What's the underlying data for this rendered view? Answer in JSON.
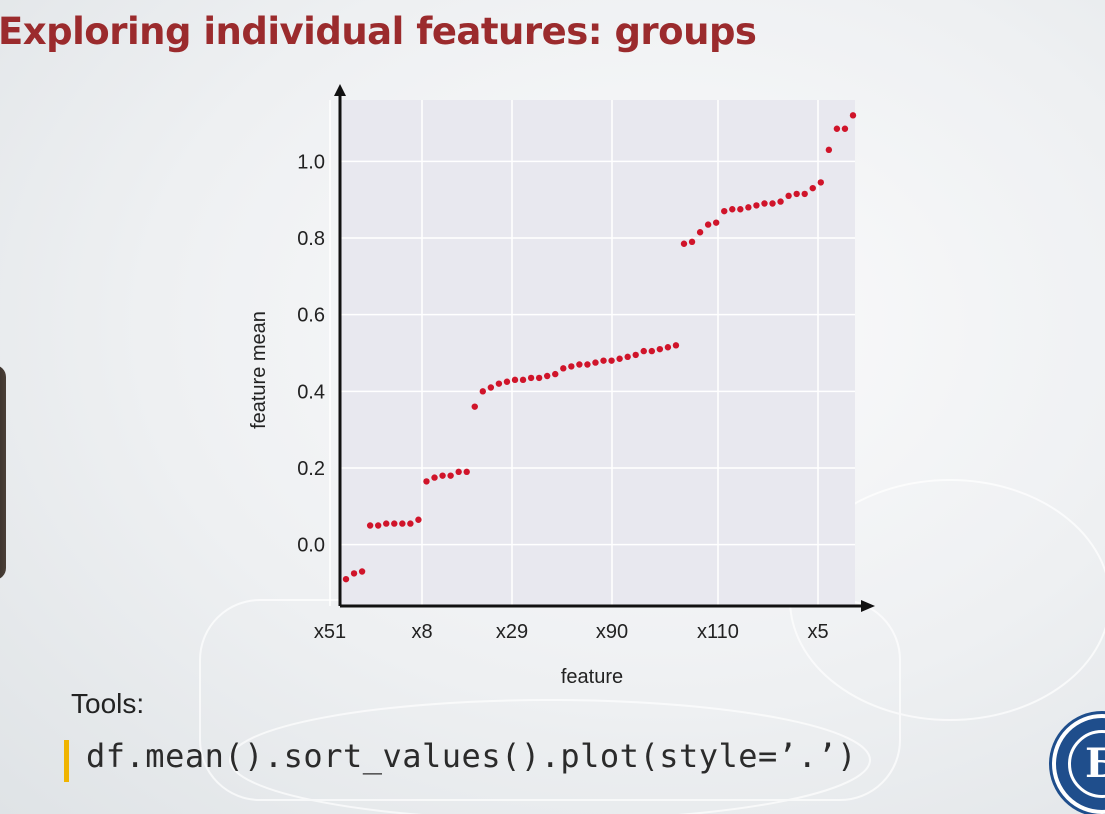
{
  "slide": {
    "title": "Exploring individual features: groups",
    "tools_label": "Tools:",
    "code": "df.mean().sort_values().plot(style=’.’)"
  },
  "logo": {
    "glyph": "Б"
  },
  "colors": {
    "title": "#9b2b2d",
    "points": "#d0142a",
    "plot_bg": "#e8e8ef",
    "code_bar": "#f0b400"
  },
  "chart_data": {
    "type": "scatter",
    "xlabel": "feature",
    "ylabel": "feature mean",
    "x_tick_labels": [
      "x51",
      "x8",
      "x29",
      "x90",
      "x110",
      "x5"
    ],
    "y_ticks": [
      0.0,
      0.2,
      0.4,
      0.6,
      0.8,
      1.0
    ],
    "ylim": [
      -0.16,
      1.16
    ],
    "grid": true,
    "series": [
      {
        "values": [
          -0.09,
          -0.075,
          -0.07,
          0.05,
          0.05,
          0.055,
          0.055,
          0.055,
          0.055,
          0.065,
          0.165,
          0.175,
          0.18,
          0.18,
          0.19,
          0.19,
          0.36,
          0.4,
          0.41,
          0.42,
          0.425,
          0.43,
          0.43,
          0.435,
          0.435,
          0.44,
          0.445,
          0.46,
          0.465,
          0.47,
          0.47,
          0.475,
          0.48,
          0.48,
          0.485,
          0.49,
          0.495,
          0.505,
          0.505,
          0.51,
          0.515,
          0.52,
          0.785,
          0.79,
          0.815,
          0.835,
          0.84,
          0.87,
          0.875,
          0.875,
          0.88,
          0.885,
          0.89,
          0.89,
          0.895,
          0.91,
          0.915,
          0.915,
          0.93,
          0.945,
          1.03,
          1.085,
          1.085,
          1.12
        ]
      }
    ]
  }
}
